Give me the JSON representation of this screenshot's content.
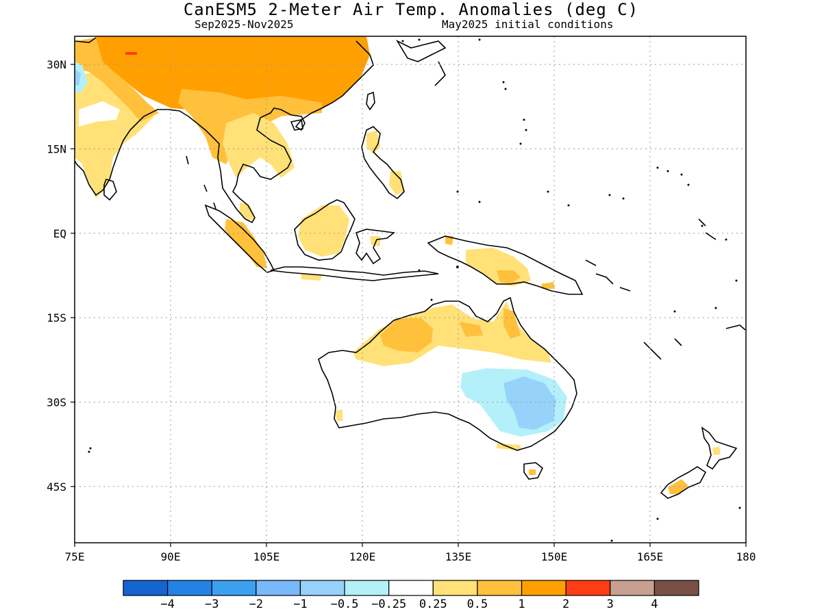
{
  "header": {
    "title": "CanESM5 2-Meter Air Temp. Anomalies (deg C)",
    "period": "Sep2025-Nov2025",
    "init": "May2025 initial conditions"
  },
  "map": {
    "lon_ticks": [
      "75E",
      "90E",
      "105E",
      "120E",
      "135E",
      "150E",
      "165E",
      "180"
    ],
    "lat_ticks": [
      "30N",
      "15N",
      "EQ",
      "15S",
      "30S",
      "45S"
    ],
    "frame_color": "#000000",
    "grid": "dotted"
  },
  "colorbar": {
    "colors": [
      "#1464d2",
      "#2382e6",
      "#3ca0f0",
      "#78b9fa",
      "#96d2fa",
      "#b4f0fa",
      "#ffffff",
      "#ffe178",
      "#ffc03c",
      "#ffa000",
      "#ff3c14",
      "#c8a092",
      "#785046"
    ],
    "labels": [
      "-4",
      "-3",
      "-2",
      "-1",
      "-0.5",
      "-0.25",
      "0.25",
      "0.5",
      "1",
      "2",
      "3",
      "4"
    ]
  },
  "palette": {
    "pale_yellow": "#ffe178",
    "light_orange": "#ffc03c",
    "orange": "#ffa000",
    "red": "#ff3c14",
    "light_blue": "#b4f0fa",
    "blue": "#96d2fa"
  }
}
